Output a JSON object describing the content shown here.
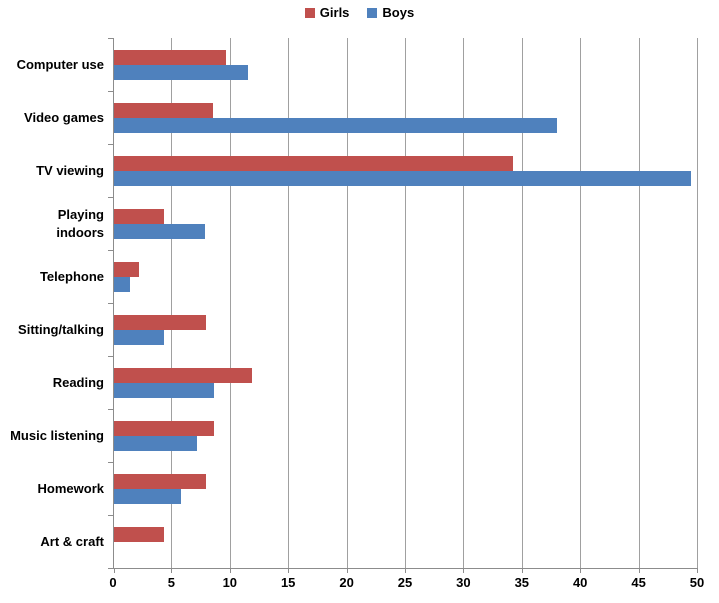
{
  "chart_data": {
    "type": "bar",
    "orientation": "horizontal",
    "title": "",
    "xlabel": "",
    "ylabel": "",
    "categories": [
      "Computer use",
      "Video games",
      "TV viewing",
      "Playing indoors",
      "Telephone",
      "Sitting/talking",
      "Reading",
      "Music listening",
      "Homework",
      "Art & craft"
    ],
    "series": [
      {
        "name": "Girls",
        "color": "#C0504D",
        "values": [
          9.6,
          8.5,
          34.2,
          4.3,
          2.1,
          7.9,
          11.8,
          8.6,
          7.9,
          4.3
        ]
      },
      {
        "name": "Boys",
        "color": "#4F81BD",
        "values": [
          11.5,
          37.9,
          49.4,
          7.8,
          1.4,
          4.3,
          8.6,
          7.1,
          5.7,
          0
        ]
      }
    ],
    "xlim": [
      0,
      50
    ],
    "xticks": [
      0,
      5,
      10,
      15,
      20,
      25,
      30,
      35,
      40,
      45,
      50
    ],
    "grid": "vertical",
    "legend_position": "top-center",
    "wrap_categories": [
      "Playing indoors"
    ],
    "colors": {
      "gridline": "#a0a0a0",
      "axis": "#8c8c8c",
      "text": "#000000",
      "background": "#ffffff"
    }
  }
}
